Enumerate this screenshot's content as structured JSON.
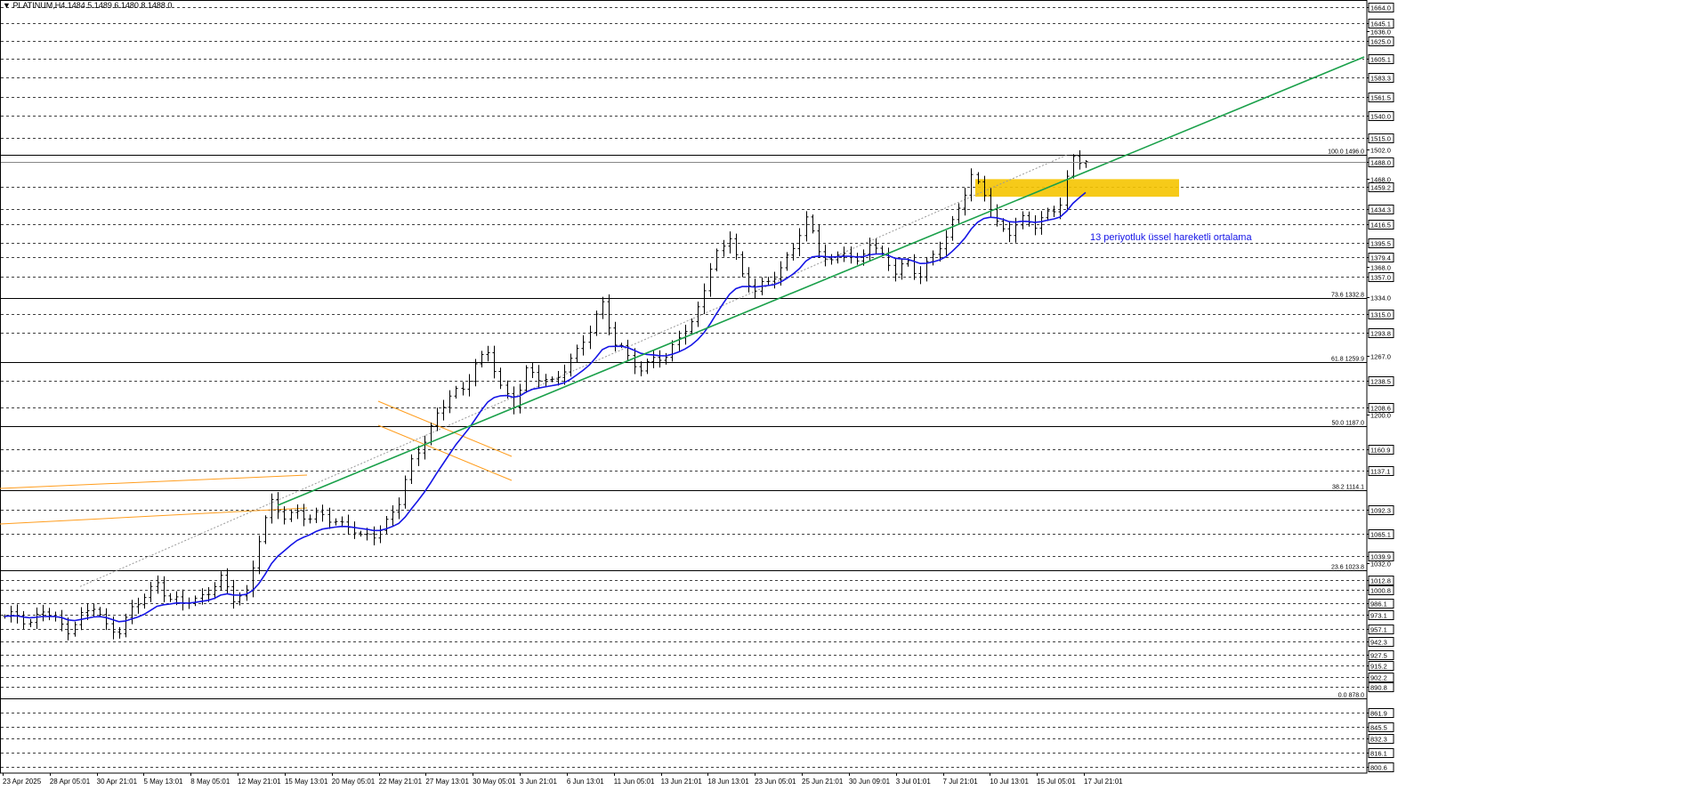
{
  "header": {
    "symbol_info": "PLATINUM,H4  1484.5 1489.6 1480.8 1488.0"
  },
  "annotation": {
    "ema_label": "13 periyotluk üssel hareketli ortalama"
  },
  "colors": {
    "background": "#ffffff",
    "price_bars": "#000000",
    "ema": "#1515e6",
    "trendline": "#1aa04a",
    "channel": "#ff9d1e",
    "resistance_zone": "#f5c400",
    "grid": "#000000"
  },
  "chart_data": {
    "type": "ohlc",
    "title": "PLATINUM,H4",
    "last_bar": {
      "open": 1484.5,
      "high": 1489.6,
      "low": 1480.8,
      "close": 1488.0
    },
    "y_ticks": [
      1664.0,
      1645.1,
      1636.0,
      1625.0,
      1605.1,
      1583.3,
      1561.5,
      1540.0,
      1515.0,
      1502.0,
      1488.0,
      1468.0,
      1459.2,
      1434.3,
      1416.5,
      1395.5,
      1379.4,
      1368.0,
      1357.0,
      1334.0,
      1315.0,
      1293.8,
      1267.0,
      1238.5,
      1208.6,
      1200.0,
      1160.9,
      1137.1,
      1092.3,
      1065.1,
      1039.9,
      1032.0,
      1012.8,
      1000.8,
      986.1,
      973.1,
      957.1,
      942.3,
      927.5,
      915.2,
      902.2,
      890.8,
      861.9,
      845.5,
      832.3,
      816.1,
      800.6
    ],
    "highlighted_levels": [
      1664.0,
      1645.1,
      1625.0,
      1605.1,
      1583.3,
      1561.5,
      1540.0,
      1515.0,
      1488.0,
      1459.2,
      1434.3,
      1416.5,
      1395.5,
      1379.4,
      1357.0,
      1315.0,
      1293.8,
      1238.5,
      1208.6,
      1160.9,
      1137.1,
      1092.3,
      1065.1,
      1039.9,
      1012.8,
      1000.8,
      986.1,
      973.1,
      957.1,
      942.3,
      927.5,
      915.2,
      902.2,
      890.8,
      861.9,
      845.5,
      832.3,
      816.1,
      800.6
    ],
    "current_price": 1488.0,
    "fibonacci": [
      {
        "label": "100.0 1496.0",
        "value": 1496.0
      },
      {
        "label": "73.6 1332.8",
        "value": 1332.8
      },
      {
        "label": "61.8 1259.9",
        "value": 1259.9
      },
      {
        "label": "50.0 1187.0",
        "value": 1187.0
      },
      {
        "label": "38.2 1114.1",
        "value": 1114.1
      },
      {
        "label": "23.6 1023.8",
        "value": 1023.8
      },
      {
        "label": "0.0 878.0",
        "value": 878.0
      }
    ],
    "x_labels": [
      "23 Apr 2025",
      "28 Apr 05:01",
      "30 Apr 21:01",
      "5 May 13:01",
      "8 May 05:01",
      "12 May 21:01",
      "15 May 13:01",
      "20 May 05:01",
      "22 May 21:01",
      "27 May 13:01",
      "30 May 05:01",
      "3 Jun 21:01",
      "6 Jun 13:01",
      "11 Jun 05:01",
      "13 Jun 21:01",
      "18 Jun 13:01",
      "23 Jun 05:01",
      "25 Jun 21:01",
      "30 Jun 09:01",
      "3 Jul 01:01",
      "7 Jul 21:01",
      "10 Jul 13:01",
      "15 Jul 05:01",
      "17 Jul 21:01"
    ],
    "close_path": [
      [
        0,
        968
      ],
      [
        2,
        973
      ],
      [
        4,
        965
      ],
      [
        6,
        977
      ],
      [
        8,
        965
      ],
      [
        10,
        958
      ],
      [
        12,
        972
      ],
      [
        14,
        980
      ],
      [
        16,
        960
      ],
      [
        18,
        957
      ],
      [
        20,
        978
      ],
      [
        22,
        992
      ],
      [
        24,
        1012
      ],
      [
        26,
        990
      ],
      [
        28,
        985
      ],
      [
        30,
        990
      ],
      [
        32,
        1002
      ],
      [
        34,
        1012
      ],
      [
        36,
        990
      ],
      [
        38,
        1000
      ],
      [
        40,
        1060
      ],
      [
        42,
        1098
      ],
      [
        44,
        1085
      ],
      [
        46,
        1092
      ],
      [
        48,
        1080
      ],
      [
        50,
        1086
      ],
      [
        52,
        1080
      ],
      [
        54,
        1075
      ],
      [
        56,
        1058
      ],
      [
        58,
        1065
      ],
      [
        60,
        1080
      ],
      [
        62,
        1100
      ],
      [
        64,
        1145
      ],
      [
        66,
        1175
      ],
      [
        68,
        1200
      ],
      [
        70,
        1220
      ],
      [
        72,
        1230
      ],
      [
        74,
        1260
      ],
      [
        76,
        1270
      ],
      [
        78,
        1230
      ],
      [
        80,
        1215
      ],
      [
        82,
        1250
      ],
      [
        84,
        1240
      ],
      [
        86,
        1238
      ],
      [
        88,
        1255
      ],
      [
        90,
        1270
      ],
      [
        92,
        1295
      ],
      [
        94,
        1330
      ],
      [
        96,
        1280
      ],
      [
        98,
        1265
      ],
      [
        100,
        1250
      ],
      [
        102,
        1270
      ],
      [
        104,
        1260
      ],
      [
        106,
        1290
      ],
      [
        108,
        1305
      ],
      [
        110,
        1345
      ],
      [
        112,
        1380
      ],
      [
        114,
        1405
      ],
      [
        116,
        1360
      ],
      [
        118,
        1340
      ],
      [
        120,
        1350
      ],
      [
        122,
        1370
      ],
      [
        124,
        1390
      ],
      [
        126,
        1420
      ],
      [
        128,
        1390
      ],
      [
        130,
        1375
      ],
      [
        132,
        1385
      ],
      [
        134,
        1370
      ],
      [
        136,
        1400
      ],
      [
        138,
        1380
      ],
      [
        140,
        1360
      ],
      [
        142,
        1375
      ],
      [
        144,
        1360
      ],
      [
        146,
        1380
      ],
      [
        148,
        1400
      ],
      [
        150,
        1440
      ],
      [
        152,
        1470
      ],
      [
        154,
        1450
      ],
      [
        156,
        1418
      ],
      [
        158,
        1410
      ],
      [
        160,
        1420
      ],
      [
        162,
        1415
      ],
      [
        164,
        1432
      ],
      [
        166,
        1440
      ],
      [
        168,
        1490
      ],
      [
        170,
        1488
      ]
    ],
    "ema_period": 13,
    "bar_count": 171
  }
}
